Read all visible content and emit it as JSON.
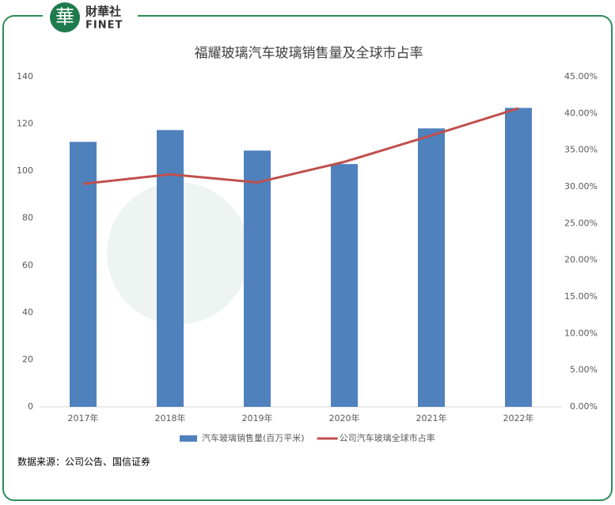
{
  "header": {
    "logo_char": "華",
    "brand": "財華社",
    "brand_en": "FINET"
  },
  "source": "数据来源：公司公告、国信证券",
  "chart_data": {
    "type": "bar",
    "title": "福耀玻璃汽车玻璃销售量及全球市占率",
    "categories": [
      "2017年",
      "2018年",
      "2019年",
      "2020年",
      "2021年",
      "2022年"
    ],
    "series": [
      {
        "name": "汽车玻璃销售量(百万平米)",
        "color": "#4f81bd",
        "values": [
          112.4,
          117.4,
          108.7,
          103,
          118.1,
          126.8
        ]
      },
      {
        "name": "公司汽车玻璃全球市占率",
        "color": "#c0504d",
        "type": "line",
        "axis": "y2",
        "values": [
          30.4,
          31.7,
          30.6,
          33.4,
          37.0,
          40.7
        ]
      }
    ],
    "ylim": [
      0,
      140
    ],
    "yticks": [
      0,
      20,
      40,
      60,
      80,
      100,
      120,
      140
    ],
    "y2lim": [
      0,
      45
    ],
    "y2ticks": [
      {
        "value": 0,
        "label": "0.00%"
      },
      {
        "value": 5,
        "label": "5.00%"
      },
      {
        "value": 10,
        "label": "10.00%"
      },
      {
        "value": 15,
        "label": "15.00%"
      },
      {
        "value": 20,
        "label": "20.00%"
      },
      {
        "value": 25,
        "label": "25.00%"
      },
      {
        "value": 30,
        "label": "30.00%"
      },
      {
        "value": 35,
        "label": "35.00%"
      },
      {
        "value": 40,
        "label": "40.00%"
      },
      {
        "value": 45,
        "label": "45.00%"
      }
    ],
    "grid": false,
    "legend": "bottom"
  }
}
